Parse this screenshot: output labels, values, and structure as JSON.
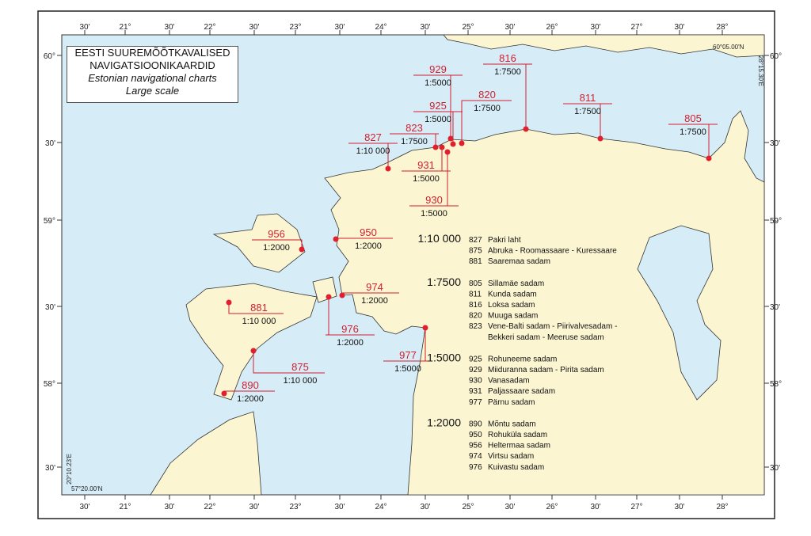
{
  "title": {
    "line1": "EESTI SUUREMÕÕTKAVALISED",
    "line2": "NAVIGATSIOONIKAARDID",
    "line3": "Estonian navigational charts",
    "line4": "Large scale"
  },
  "longitude_labels": [
    "30'",
    "21°",
    "30'",
    "22°",
    "30'",
    "23°",
    "30'",
    "24°",
    "30'",
    "25°",
    "30'",
    "26°",
    "30'",
    "27°",
    "30'",
    "28°"
  ],
  "latitude_labels": [
    "60°",
    "30'",
    "59°",
    "30'",
    "58°",
    "30'"
  ],
  "corner_coords": {
    "top_right_lat": "60°05.00'N",
    "top_right_lon": "28°15.30'E",
    "bottom_left_lat": "57°20.00'N",
    "bottom_left_lon": "20°10.23'E"
  },
  "colors": {
    "land": "#fbf5d2",
    "sea": "#d6edf8",
    "marker": "#e0202e",
    "label": "#d2202f"
  },
  "charts": [
    {
      "number": "929",
      "scale": "1:5000"
    },
    {
      "number": "816",
      "scale": "1:7500"
    },
    {
      "number": "820",
      "scale": "1:7500"
    },
    {
      "number": "925",
      "scale": "1:5000"
    },
    {
      "number": "811",
      "scale": "1:7500"
    },
    {
      "number": "805",
      "scale": "1:7500"
    },
    {
      "number": "823",
      "scale": "1:7500"
    },
    {
      "number": "827",
      "scale": "1:10 000"
    },
    {
      "number": "931",
      "scale": "1:5000"
    },
    {
      "number": "930",
      "scale": "1:5000"
    },
    {
      "number": "956",
      "scale": "1:2000"
    },
    {
      "number": "950",
      "scale": "1:2000"
    },
    {
      "number": "974",
      "scale": "1:2000"
    },
    {
      "number": "881",
      "scale": "1:10 000"
    },
    {
      "number": "976",
      "scale": "1:2000"
    },
    {
      "number": "977",
      "scale": "1:5000"
    },
    {
      "number": "875",
      "scale": "1:10 000"
    },
    {
      "number": "890",
      "scale": "1:2000"
    }
  ],
  "legend": [
    {
      "scale": "1:10 000",
      "items": [
        [
          "827",
          "Pakri laht"
        ],
        [
          "875",
          "Abruka - Roomassaare - Kuressaare"
        ],
        [
          "881",
          "Saaremaa sadam"
        ]
      ]
    },
    {
      "scale": "1:7500",
      "items": [
        [
          "805",
          "Sillamäe sadam"
        ],
        [
          "811",
          "Kunda sadam"
        ],
        [
          "816",
          "Loksa sadam"
        ],
        [
          "820",
          "Muuga sadam"
        ],
        [
          "823",
          "Vene-Balti sadam - Piirivalvesadam -"
        ],
        [
          "",
          "Bekkeri sadam - Meeruse sadam"
        ]
      ]
    },
    {
      "scale": "1:5000",
      "items": [
        [
          "925",
          "Rohuneeme sadam"
        ],
        [
          "929",
          "Miiduranna sadam - Pirita sadam"
        ],
        [
          "930",
          "Vanasadam"
        ],
        [
          "931",
          "Paljassaare sadam"
        ],
        [
          "977",
          "Pärnu sadam"
        ]
      ]
    },
    {
      "scale": "1:2000",
      "items": [
        [
          "890",
          "Mõntu sadam"
        ],
        [
          "950",
          "Rohuküla sadam"
        ],
        [
          "956",
          "Heltermaa sadam"
        ],
        [
          "974",
          "Virtsu sadam"
        ],
        [
          "976",
          "Kuivastu sadam"
        ]
      ]
    }
  ]
}
